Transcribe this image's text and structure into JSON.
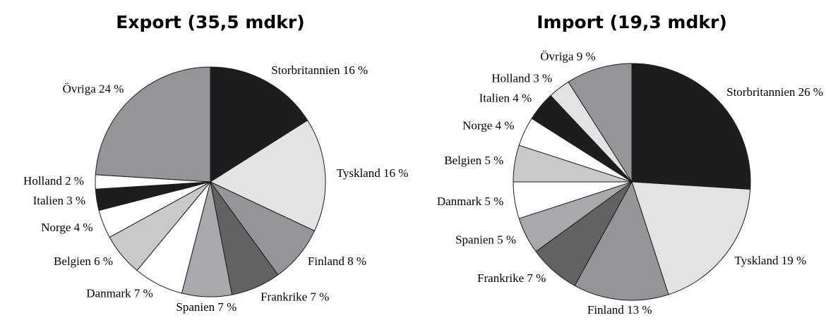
{
  "chart_data": [
    {
      "type": "pie",
      "title": "Export (35,5 mdkr)",
      "categories": [
        "Storbritannien",
        "Tyskland",
        "Finland",
        "Frankrike",
        "Spanien",
        "Danmark",
        "Belgien",
        "Norge",
        "Italien",
        "Holland",
        "Övriga"
      ],
      "values": [
        16,
        16,
        8,
        7,
        7,
        7,
        6,
        4,
        3,
        2,
        24
      ],
      "value_labels": [
        "16 %",
        "16 %",
        "8 %",
        "7 %",
        "7 %",
        "7 %",
        "6 %",
        "4 %",
        "3 %",
        "2 %",
        "24 %"
      ],
      "colors": [
        "#1d1d1b",
        "#e2e3e5",
        "#939598",
        "#616264",
        "#a7a9ac",
        "#ffffff",
        "#c8c9cb",
        "#ffffff",
        "#1d1d1b",
        "#ffffff",
        "#939598"
      ]
    },
    {
      "type": "pie",
      "title": "Import (19,3 mdkr)",
      "categories": [
        "Storbritannien",
        "Tyskland",
        "Finland",
        "Frankrike",
        "Spanien",
        "Danmark",
        "Belgien",
        "Norge",
        "Italien",
        "Holland",
        "Övriga"
      ],
      "values": [
        26,
        19,
        13,
        7,
        5,
        5,
        5,
        4,
        4,
        3,
        9
      ],
      "value_labels": [
        "26 %",
        "19 %",
        "13 %",
        "7 %",
        "5 %",
        "5 %",
        "5 %",
        "4 %",
        "4 %",
        "3 %",
        "9 %"
      ],
      "colors": [
        "#1d1d1b",
        "#e2e3e5",
        "#939598",
        "#616264",
        "#a7a9ac",
        "#ffffff",
        "#c8c9cb",
        "#ffffff",
        "#1d1d1b",
        "#e2e3e5",
        "#939598"
      ]
    }
  ]
}
